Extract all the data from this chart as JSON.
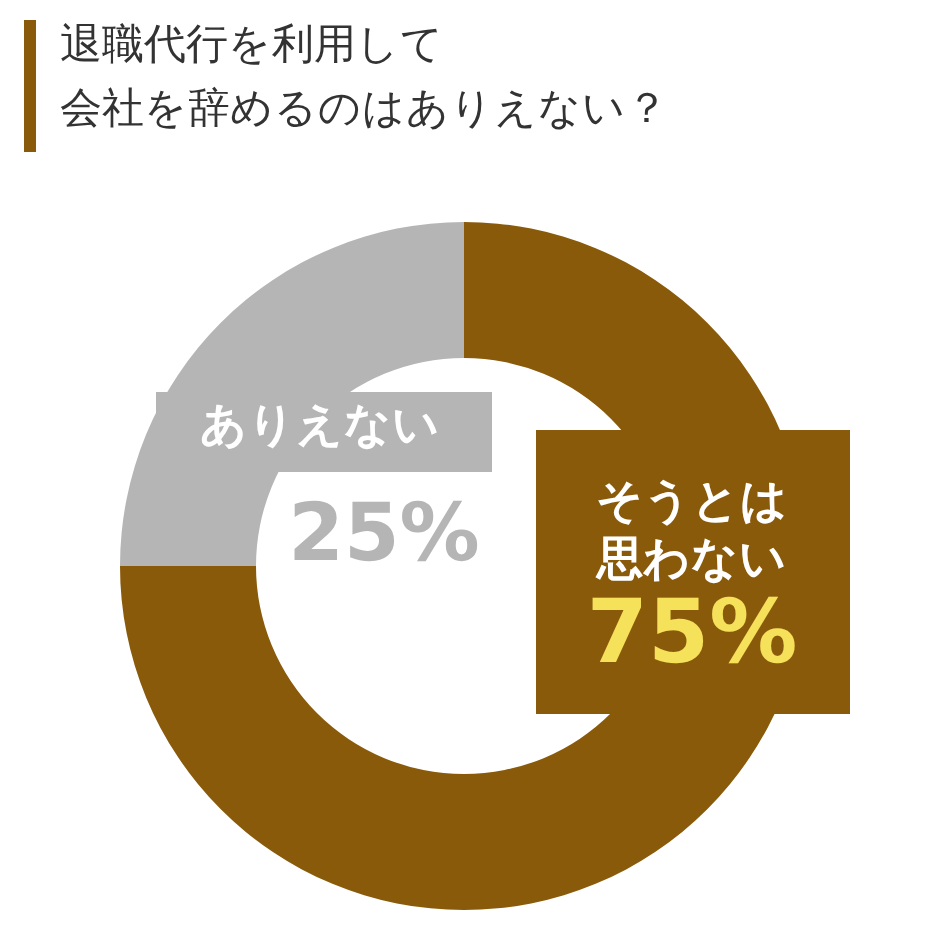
{
  "chart_data": {
    "type": "donut",
    "title": [
      "退職代行を利用して",
      "会社を辞めるのはありえない？"
    ],
    "categories": [
      "そうとは思わない",
      "ありえない"
    ],
    "values": [
      75,
      25
    ],
    "colors": [
      "#8a5a0b",
      "#b5b5b5"
    ],
    "value_labels": [
      "75%",
      "25%"
    ]
  }
}
